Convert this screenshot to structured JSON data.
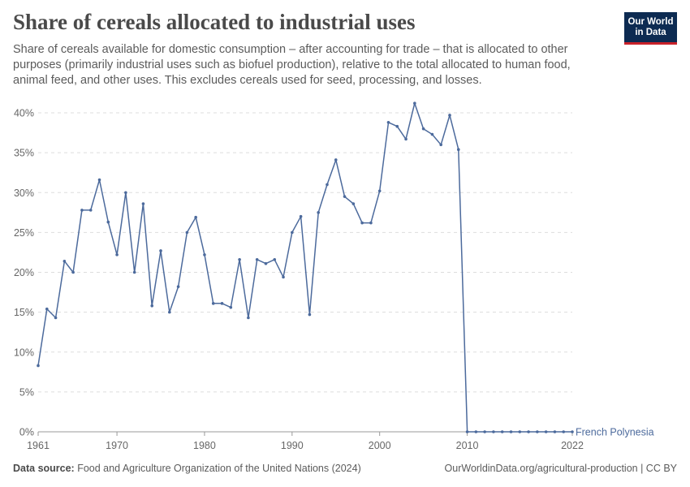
{
  "header": {
    "title": "Share of cereals allocated to industrial uses",
    "subtitle": "Share of cereals available for domestic consumption – after accounting for trade – that is allocated to other purposes (primarily industrial uses such as biofuel production), relative to the total allocated to human food, animal feed, and other uses. This excludes cereals used for seed, processing, and losses.",
    "logo_line1": "Our World",
    "logo_line2": "in Data"
  },
  "footer": {
    "source_label": "Data source:",
    "source_text": "Food and Agriculture Organization of the United Nations (2024)",
    "right_text": "OurWorldinData.org/agricultural-production | CC BY"
  },
  "colors": {
    "series": "#4c6a9c",
    "grid": "#dddddd",
    "axis": "#999999",
    "logo_bg": "#0d2b52",
    "logo_accent": "#c8212a"
  },
  "chart_data": {
    "type": "line",
    "xlim": [
      1961,
      2022
    ],
    "ylim": [
      0,
      40
    ],
    "y_ticks": [
      0,
      5,
      10,
      15,
      20,
      25,
      30,
      35,
      40
    ],
    "y_tick_labels": [
      "0%",
      "5%",
      "10%",
      "15%",
      "20%",
      "25%",
      "30%",
      "35%",
      "40%"
    ],
    "x_ticks": [
      1961,
      1970,
      1980,
      1990,
      2000,
      2010,
      2022
    ],
    "x_tick_labels": [
      "1961",
      "1970",
      "1980",
      "1990",
      "2000",
      "2010",
      "2022"
    ],
    "grid": "horizontal-dashed",
    "series": [
      {
        "name": "French Polynesia",
        "x": [
          1961,
          1962,
          1963,
          1964,
          1965,
          1966,
          1967,
          1968,
          1969,
          1970,
          1971,
          1972,
          1973,
          1974,
          1975,
          1976,
          1977,
          1978,
          1979,
          1980,
          1981,
          1982,
          1983,
          1984,
          1985,
          1986,
          1987,
          1988,
          1989,
          1990,
          1991,
          1992,
          1993,
          1994,
          1995,
          1996,
          1997,
          1998,
          1999,
          2000,
          2001,
          2002,
          2003,
          2004,
          2005,
          2006,
          2007,
          2008,
          2009,
          2010,
          2011,
          2012,
          2013,
          2014,
          2015,
          2016,
          2017,
          2018,
          2019,
          2020,
          2021,
          2022
        ],
        "values": [
          8.3,
          15.4,
          14.3,
          21.4,
          20.0,
          27.8,
          27.8,
          31.6,
          26.3,
          22.2,
          30.0,
          20.0,
          28.6,
          15.8,
          22.7,
          15.0,
          18.2,
          25.0,
          26.9,
          22.2,
          16.1,
          16.1,
          15.6,
          21.6,
          14.3,
          21.6,
          21.1,
          21.6,
          19.4,
          25.0,
          27.0,
          14.7,
          27.5,
          31.0,
          34.1,
          29.5,
          28.6,
          26.2,
          26.2,
          30.2,
          38.8,
          38.3,
          36.7,
          41.2,
          38.0,
          37.3,
          36.0,
          39.7,
          35.4,
          0,
          0,
          0,
          0,
          0,
          0,
          0,
          0,
          0,
          0,
          0,
          0,
          0
        ]
      }
    ]
  }
}
